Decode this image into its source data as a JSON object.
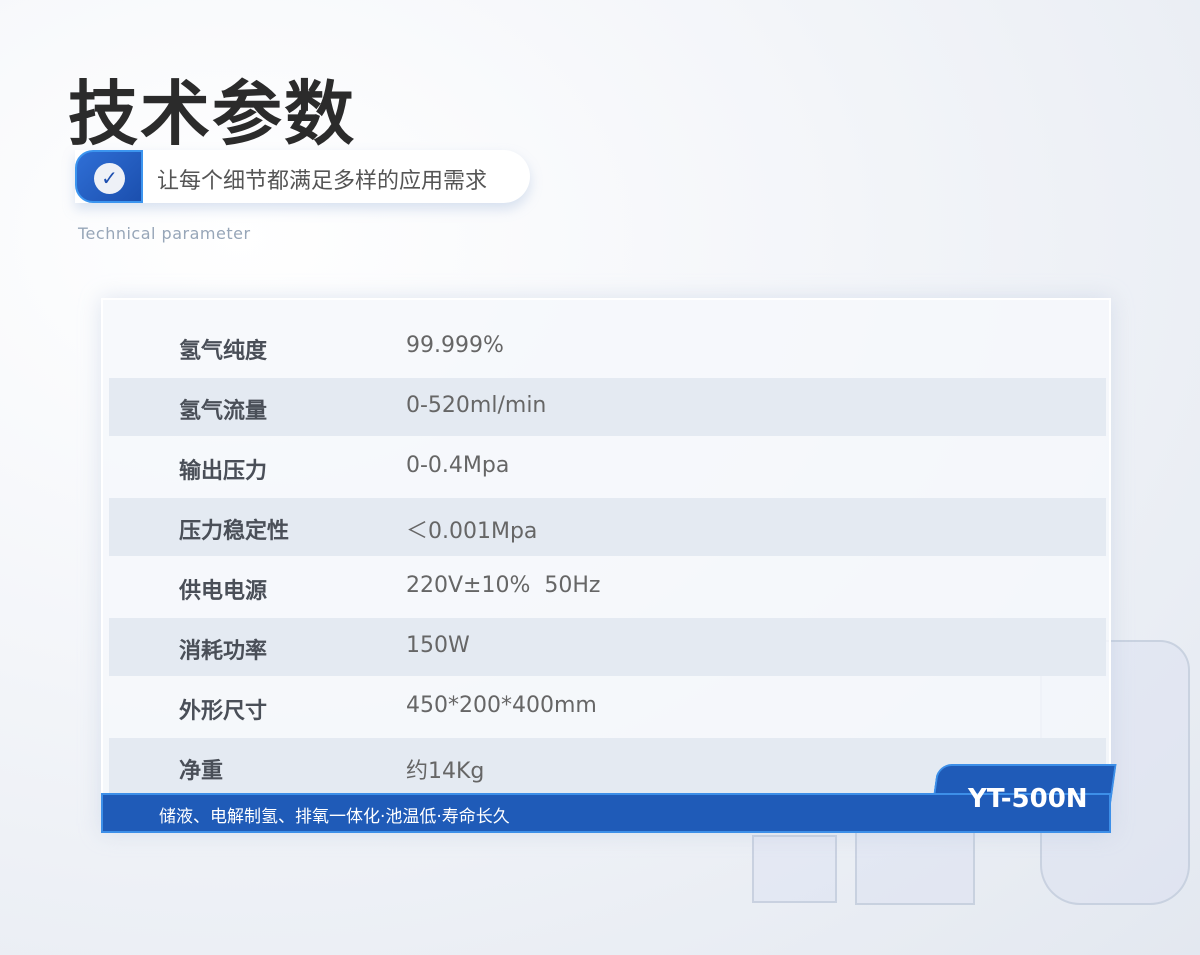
{
  "header": {
    "title": "技术参数",
    "tagline": "让每个细节都满足多样的应用需求",
    "subtitle": "Technical parameter"
  },
  "specs": [
    {
      "label": "氢气纯度",
      "value": "99.999%"
    },
    {
      "label": "氢气流量",
      "value": "0-520ml/min"
    },
    {
      "label": "输出压力",
      "value": "0-0.4Mpa"
    },
    {
      "label": "压力稳定性",
      "value": "＜0.001Mpa"
    },
    {
      "label": "供电电源",
      "value": "220V±10%  50Hz"
    },
    {
      "label": "消耗功率",
      "value": "150W"
    },
    {
      "label": "外形尺寸",
      "value": "450*200*400mm"
    },
    {
      "label": "净重",
      "value": "约14Kg"
    }
  ],
  "footer": {
    "features": "储液、电解制氢、排氧一体化·池温低·寿命长久",
    "model": "YT-500N"
  },
  "colors": {
    "accent": "#1f5bb8",
    "row_alt": "#e4eaf2"
  }
}
